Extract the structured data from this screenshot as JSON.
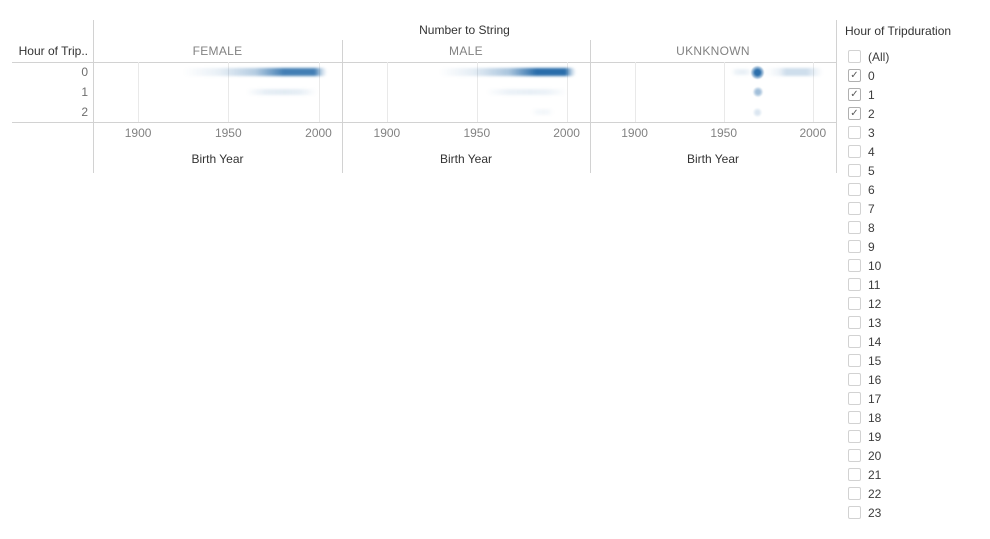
{
  "chart": {
    "title": "Number to String",
    "row_field_label": "Hour of Trip..",
    "axis_title": "Birth Year"
  },
  "chart_data": {
    "type": "heatmap",
    "title": "Number to String",
    "columns_dimension": "Number to String",
    "panels": [
      "FEMALE",
      "MALE",
      "UKNKNOWN"
    ],
    "rows_dimension": "Hour of Trip..",
    "rows": [
      "0",
      "1",
      "2"
    ],
    "xlabel": "Birth Year",
    "x_ticks": [
      1900,
      1950,
      2000
    ],
    "x_range": [
      1875,
      2013
    ],
    "legend": "none",
    "grid": "vertical-only",
    "mark_rgb": [
      34,
      104,
      167
    ],
    "marks": [
      {
        "panel": "FEMALE",
        "row": "0",
        "kind": "smear",
        "from": 1925,
        "to": 2005,
        "peak_from": 1981,
        "peak_to": 1998,
        "intensity": 0.85
      },
      {
        "panel": "FEMALE",
        "row": "1",
        "kind": "smear",
        "from": 1960,
        "to": 1999,
        "intensity": 0.13
      },
      {
        "panel": "MALE",
        "row": "0",
        "kind": "smear",
        "from": 1929,
        "to": 2005,
        "peak_from": 1983,
        "peak_to": 1999,
        "intensity": 0.97
      },
      {
        "panel": "MALE",
        "row": "1",
        "kind": "smear",
        "from": 1955,
        "to": 2000,
        "intensity": 0.1
      },
      {
        "panel": "MALE",
        "row": "2",
        "kind": "smear",
        "from": 1980,
        "to": 1993,
        "intensity": 0.05
      },
      {
        "panel": "UKNKNOWN",
        "row": "0",
        "kind": "dot",
        "year": 1969,
        "size": 13,
        "intensity": 0.95
      },
      {
        "panel": "UKNKNOWN",
        "row": "0",
        "kind": "smear",
        "from": 1954,
        "to": 1966,
        "intensity": 0.1
      },
      {
        "panel": "UKNKNOWN",
        "row": "0",
        "kind": "smear",
        "from": 1972,
        "to": 2006,
        "peak_from": 1985,
        "peak_to": 1997,
        "intensity": 0.22
      },
      {
        "panel": "UKNKNOWN",
        "row": "1",
        "kind": "dot",
        "year": 1969,
        "size": 10,
        "intensity": 0.42
      },
      {
        "panel": "UKNKNOWN",
        "row": "2",
        "kind": "dot",
        "year": 1969,
        "size": 9,
        "intensity": 0.16
      }
    ]
  },
  "filter": {
    "title": "Hour of Tripduration",
    "items": [
      {
        "label": "(All)",
        "checked": false
      },
      {
        "label": "0",
        "checked": true
      },
      {
        "label": "1",
        "checked": true
      },
      {
        "label": "2",
        "checked": true
      },
      {
        "label": "3",
        "checked": false
      },
      {
        "label": "4",
        "checked": false
      },
      {
        "label": "5",
        "checked": false
      },
      {
        "label": "6",
        "checked": false
      },
      {
        "label": "7",
        "checked": false
      },
      {
        "label": "8",
        "checked": false
      },
      {
        "label": "9",
        "checked": false
      },
      {
        "label": "10",
        "checked": false
      },
      {
        "label": "11",
        "checked": false
      },
      {
        "label": "12",
        "checked": false
      },
      {
        "label": "13",
        "checked": false
      },
      {
        "label": "14",
        "checked": false
      },
      {
        "label": "15",
        "checked": false
      },
      {
        "label": "16",
        "checked": false
      },
      {
        "label": "17",
        "checked": false
      },
      {
        "label": "18",
        "checked": false
      },
      {
        "label": "19",
        "checked": false
      },
      {
        "label": "20",
        "checked": false
      },
      {
        "label": "21",
        "checked": false
      },
      {
        "label": "22",
        "checked": false
      },
      {
        "label": "23",
        "checked": false
      }
    ],
    "check_glyph": "✓"
  },
  "colors": {
    "frame_line": "#d2d2d2",
    "gridline": "#e9e9e9",
    "header_text": "#828282",
    "label_text": "#333333"
  }
}
